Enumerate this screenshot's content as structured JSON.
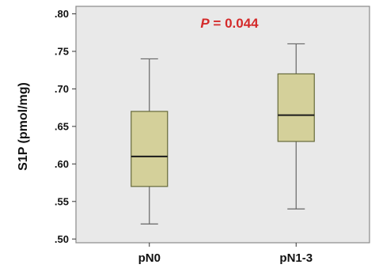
{
  "chart_data": {
    "type": "box",
    "ylabel": "S1P (pmol/mg)",
    "ylim": [
      0.495,
      0.81
    ],
    "yticks": [
      0.5,
      0.55,
      0.6,
      0.65,
      0.7,
      0.75,
      0.8
    ],
    "ytick_labels": [
      ".50",
      ".55",
      ".60",
      ".65",
      ".70",
      ".75",
      ".80"
    ],
    "categories": [
      "pN0",
      "pN1-3"
    ],
    "boxes": [
      {
        "category": "pN0",
        "whisker_low": 0.52,
        "q1": 0.57,
        "median": 0.61,
        "q3": 0.67,
        "whisker_high": 0.74
      },
      {
        "category": "pN1-3",
        "whisker_low": 0.54,
        "q1": 0.63,
        "median": 0.665,
        "q3": 0.72,
        "whisker_high": 0.76
      }
    ],
    "annotation": {
      "italic": "P",
      "rest": " = 0.044"
    },
    "grid": false,
    "colors": {
      "box_fill": "#d4d09a",
      "box_stroke": "#666a3a",
      "median": "#1a1a1a",
      "whisker": "#666666",
      "panel_bg": "#e9e9e9",
      "panel_border": "#8a8a8a",
      "annotation": "#d42a2a"
    }
  }
}
